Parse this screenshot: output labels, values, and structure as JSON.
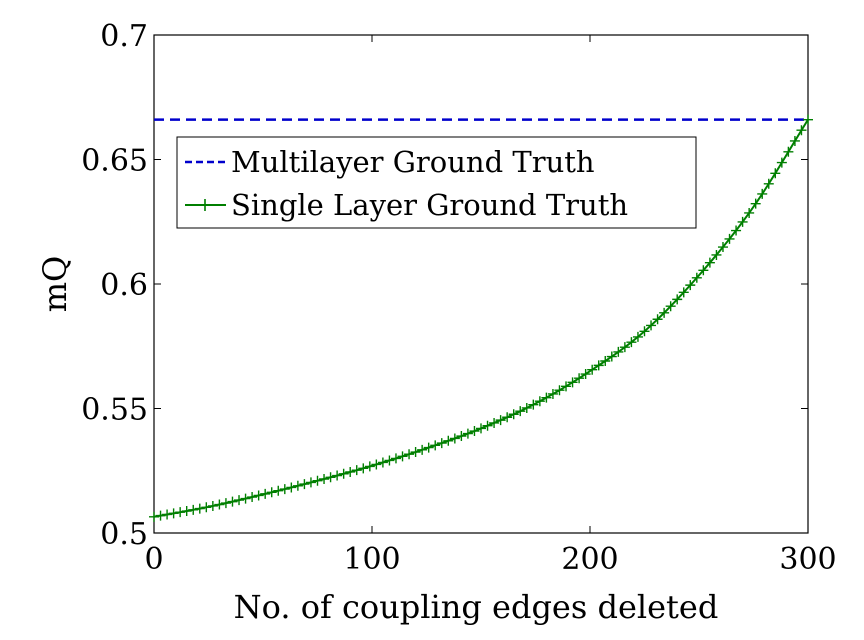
{
  "chart_data": {
    "type": "line",
    "title": "",
    "xlabel": "No. of coupling edges deleted",
    "ylabel": "mQ",
    "xlim": [
      0,
      300
    ],
    "ylim": [
      0.5,
      0.7
    ],
    "xticks": [
      0,
      100,
      200,
      300
    ],
    "xtick_labels": [
      "0",
      "100",
      "200",
      "300"
    ],
    "yticks": [
      0.5,
      0.55,
      0.6,
      0.65,
      0.7
    ],
    "ytick_labels": [
      "0.5",
      "0.55",
      "0.6",
      "0.65",
      "0.7"
    ],
    "grid": false,
    "legend_position": "upper-left",
    "series": [
      {
        "name": "Multilayer Ground Truth",
        "color": "#0000cc",
        "line_style": "dashed",
        "marker": "none",
        "x": [
          0,
          300
        ],
        "y": [
          0.666,
          0.666
        ]
      },
      {
        "name": "Single Layer Ground Truth",
        "color": "#007f00",
        "line_style": "solid",
        "marker": "plus",
        "x": [
          0,
          25,
          50,
          75,
          100,
          125,
          150,
          175,
          200,
          225,
          250,
          275,
          300
        ],
        "y": [
          0.5065,
          0.5105,
          0.5155,
          0.521,
          0.527,
          0.534,
          0.542,
          0.552,
          0.565,
          0.581,
          0.6035,
          0.631,
          0.666
        ]
      }
    ]
  }
}
